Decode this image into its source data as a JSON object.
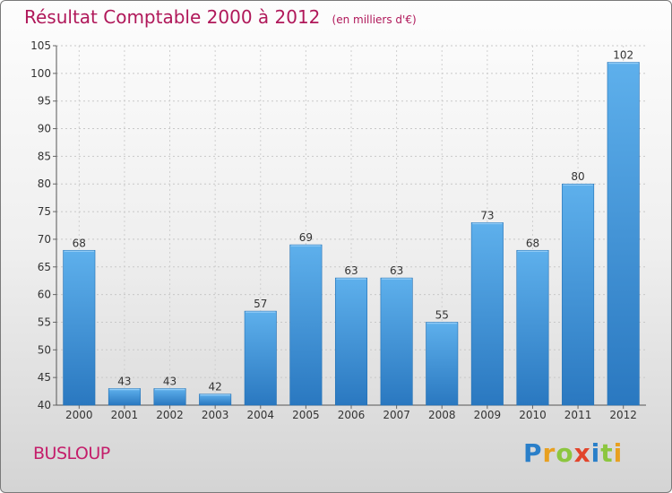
{
  "chart_data": {
    "type": "bar",
    "title": "Résultat Comptable 2000 à 2012",
    "subtitle": "(en milliers d'€)",
    "xlabel": "",
    "ylabel": "",
    "categories": [
      "2000",
      "2001",
      "2002",
      "2003",
      "2004",
      "2005",
      "2006",
      "2007",
      "2008",
      "2009",
      "2010",
      "2011",
      "2012"
    ],
    "values": [
      68,
      43,
      43,
      42,
      57,
      69,
      63,
      63,
      55,
      73,
      68,
      80,
      102
    ],
    "ylim": [
      40,
      105
    ],
    "yticks": [
      40,
      45,
      50,
      55,
      60,
      65,
      70,
      75,
      80,
      85,
      90,
      95,
      100,
      105
    ],
    "grid": true,
    "bar_color": "#3b8fd8"
  },
  "commune": "BUSLOUP",
  "logo": {
    "letters": [
      "P",
      "r",
      "o",
      "x",
      "i",
      "t",
      "i"
    ],
    "colors": [
      "#2a7fc9",
      "#e8a020",
      "#8cc63f",
      "#e2442b",
      "#2a7fc9",
      "#8cc63f",
      "#e8a020"
    ]
  }
}
